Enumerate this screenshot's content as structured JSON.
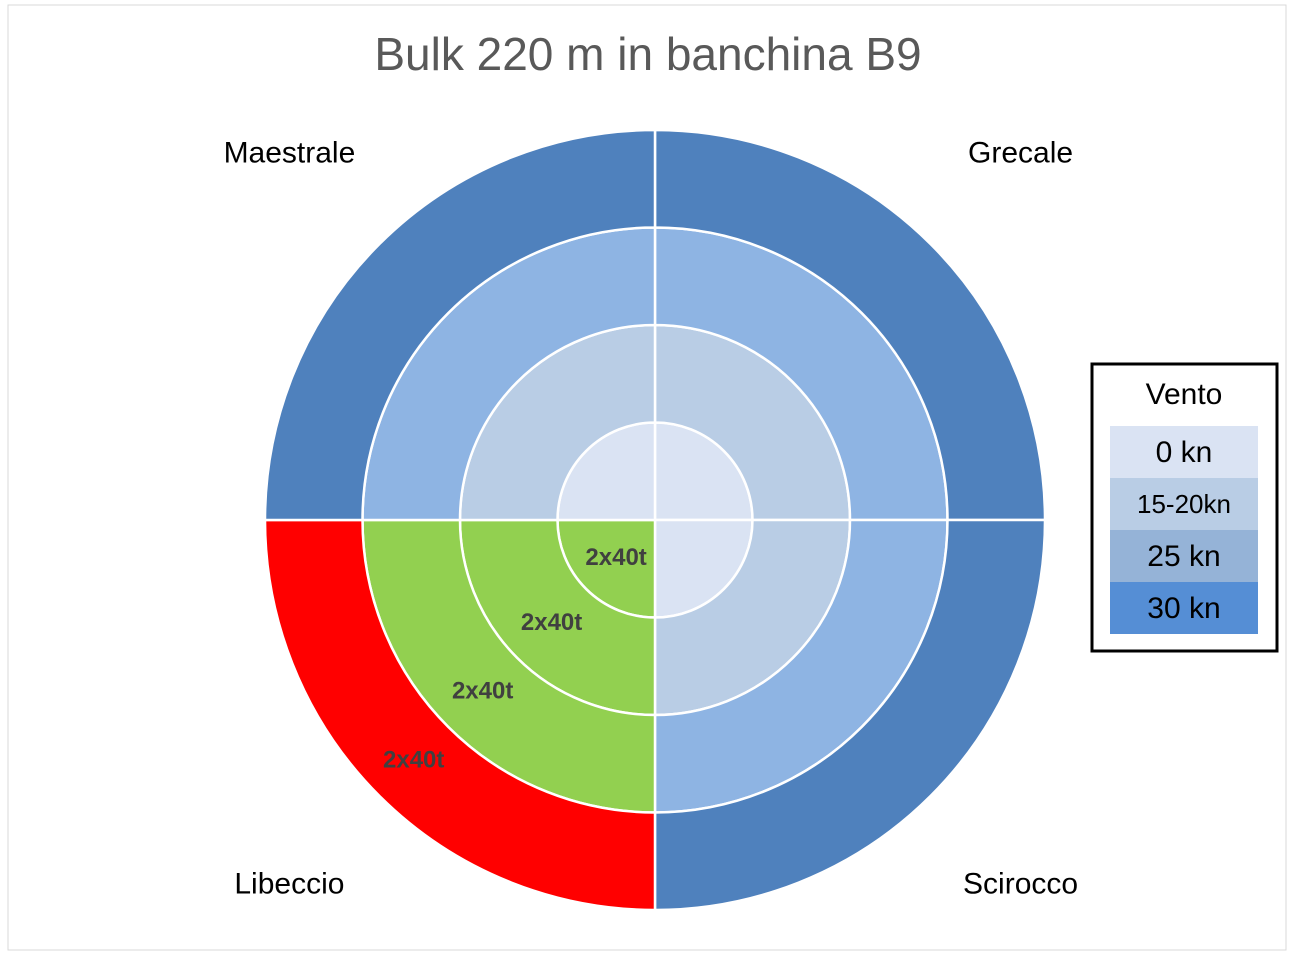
{
  "chart_data": {
    "type": "donut",
    "title": "Bulk 220 m in banchina B9",
    "categories": [
      "Grecale",
      "Scirocco",
      "Libeccio",
      "Maestrale"
    ],
    "legend_title": "Vento",
    "series": [
      {
        "name": "0 kn",
        "color": "#dae3f3",
        "colors": [
          "#dae3f3",
          "#dae3f3",
          "#92d050",
          "#dae3f3"
        ],
        "values": [
          25,
          25,
          25,
          25
        ],
        "labels": [
          null,
          null,
          "2x40t",
          null
        ]
      },
      {
        "name": "15-20kn",
        "color": "#b9cde5",
        "colors": [
          "#b9cde5",
          "#b9cde5",
          "#92d050",
          "#b9cde5"
        ],
        "values": [
          25,
          25,
          25,
          25
        ],
        "labels": [
          null,
          null,
          "2x40t",
          null
        ]
      },
      {
        "name": "25 kn",
        "color": "#95b3d7",
        "colors": [
          "#8eb4e3",
          "#8eb4e3",
          "#92d050",
          "#8eb4e3"
        ],
        "values": [
          25,
          25,
          25,
          25
        ],
        "labels": [
          null,
          null,
          "2x40t",
          null
        ]
      },
      {
        "name": "30 kn",
        "color": "#558ed5",
        "colors": [
          "#4f81bd",
          "#4f81bd",
          "#ff0000",
          "#4f81bd"
        ],
        "values": [
          25,
          25,
          25,
          25
        ],
        "labels": [
          null,
          null,
          "2x40t",
          null
        ]
      }
    ]
  }
}
